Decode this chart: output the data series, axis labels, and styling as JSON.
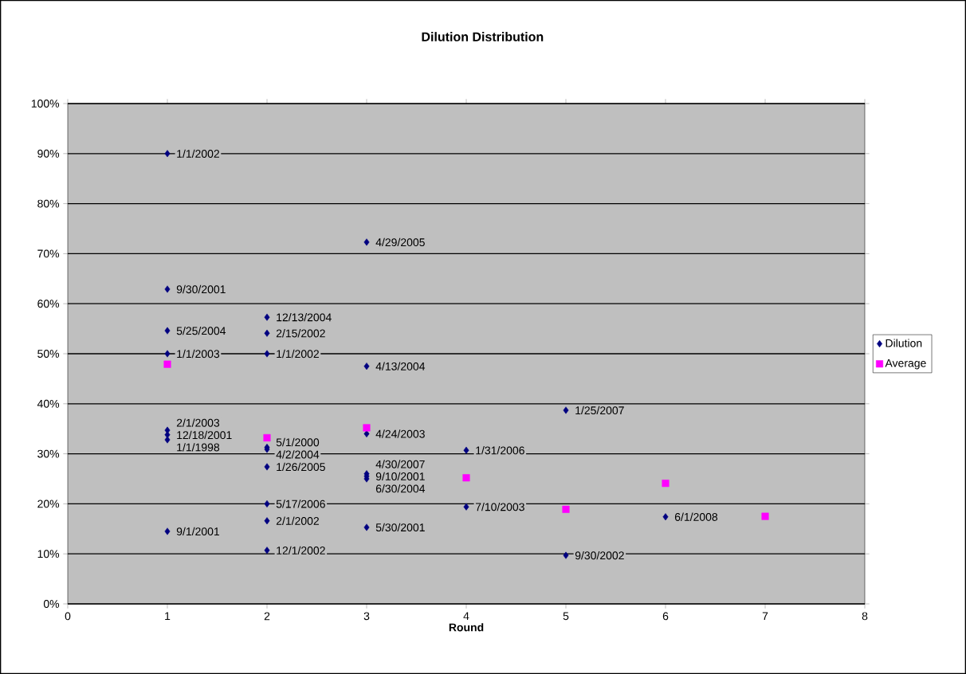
{
  "chart_data": {
    "type": "scatter",
    "title": "Dilution Distribution",
    "xlabel": "Round",
    "xlim": [
      0,
      8
    ],
    "xticks": [
      0,
      1,
      2,
      3,
      4,
      5,
      6,
      7,
      8
    ],
    "ylim": [
      0,
      100
    ],
    "yticks": [
      {
        "value": 0,
        "label": "0%"
      },
      {
        "value": 10,
        "label": "10%"
      },
      {
        "value": 20,
        "label": "20%"
      },
      {
        "value": 30,
        "label": "30%"
      },
      {
        "value": 40,
        "label": "40%"
      },
      {
        "value": 50,
        "label": "50%"
      },
      {
        "value": 60,
        "label": "60%"
      },
      {
        "value": 70,
        "label": "70%"
      },
      {
        "value": 80,
        "label": "80%"
      },
      {
        "value": 90,
        "label": "90%"
      },
      {
        "value": 100,
        "label": "100%"
      }
    ],
    "grid": "y",
    "legend": "right",
    "series": [
      {
        "name": "Dilution",
        "color": "#000080",
        "marker": "diamond",
        "x": [
          1,
          1,
          1,
          1,
          1,
          1,
          1,
          1,
          2,
          2,
          2,
          2,
          2,
          2,
          2,
          2,
          2,
          3,
          3,
          3,
          3,
          3,
          3,
          3,
          4,
          4,
          5,
          5,
          6
        ],
        "values": [
          90,
          62.9,
          54.6,
          50,
          34.7,
          33.8,
          32.8,
          14.5,
          57.3,
          54.1,
          50,
          31.3,
          30.9,
          27.4,
          20,
          16.6,
          10.7,
          72.3,
          47.5,
          34,
          26,
          25.5,
          25,
          15.3,
          30.7,
          19.4,
          38.7,
          9.7,
          17.4
        ]
      },
      {
        "name": "Average",
        "color": "#ff00ff",
        "marker": "square",
        "x": [
          1,
          2,
          3,
          4,
          5,
          6,
          7
        ],
        "values": [
          47.9,
          33.2,
          35.2,
          25.2,
          18.9,
          24.1,
          17.5
        ]
      }
    ],
    "annotations": [
      {
        "text": "1/1/2002",
        "x": 1,
        "y": 90
      },
      {
        "text": "9/30/2001",
        "x": 1,
        "y": 62.9
      },
      {
        "text": "5/25/2004",
        "x": 1,
        "y": 54.6
      },
      {
        "text": "1/1/2003",
        "x": 1,
        "y": 50
      },
      {
        "text": "2/1/2003",
        "x": 1,
        "y": 34.7
      },
      {
        "text": "12/18/2001",
        "x": 1,
        "y": 33.8
      },
      {
        "text": "1/1/1998",
        "x": 1,
        "y": 32.8
      },
      {
        "text": "9/1/2001",
        "x": 1,
        "y": 14.5
      },
      {
        "text": "12/13/2004",
        "x": 2,
        "y": 57.3
      },
      {
        "text": "2/15/2002",
        "x": 2,
        "y": 54.1
      },
      {
        "text": "1/1/2002",
        "x": 2,
        "y": 50
      },
      {
        "text": "5/1/2000",
        "x": 2,
        "y": 31.3
      },
      {
        "text": "4/2/2004",
        "x": 2,
        "y": 30.9
      },
      {
        "text": "1/26/2005",
        "x": 2,
        "y": 27.4
      },
      {
        "text": "5/17/2006",
        "x": 2,
        "y": 20
      },
      {
        "text": "2/1/2002",
        "x": 2,
        "y": 16.6
      },
      {
        "text": "12/1/2002",
        "x": 2,
        "y": 10.7
      },
      {
        "text": "4/29/2005",
        "x": 3,
        "y": 72.3
      },
      {
        "text": "4/13/2004",
        "x": 3,
        "y": 47.5
      },
      {
        "text": "4/24/2003",
        "x": 3,
        "y": 34
      },
      {
        "text": "4/30/2007",
        "x": 3,
        "y": 26
      },
      {
        "text": "6/30/2004",
        "x": 3,
        "y": 25.5
      },
      {
        "text": "9/10/2001",
        "x": 3,
        "y": 25
      },
      {
        "text": "5/30/2001",
        "x": 3,
        "y": 15.3
      },
      {
        "text": "1/31/2006",
        "x": 4,
        "y": 30.7
      },
      {
        "text": "7/10/2003",
        "x": 4,
        "y": 19.4
      },
      {
        "text": "1/25/2007",
        "x": 5,
        "y": 38.7
      },
      {
        "text": "9/30/2002",
        "x": 5,
        "y": 9.7
      },
      {
        "text": "6/1/2008",
        "x": 6,
        "y": 17.4
      }
    ]
  }
}
